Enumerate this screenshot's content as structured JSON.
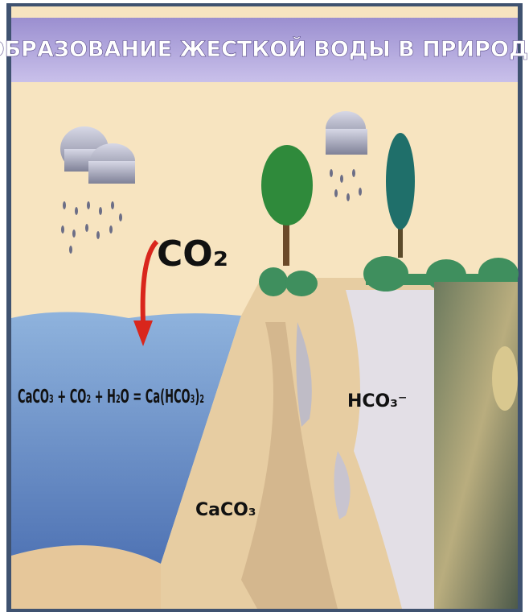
{
  "title": "ОБРАЗОВАНИЕ ЖЕСТКОЙ ВОДЫ В ПРИРОДЕ",
  "labels": {
    "co2": "CO₂",
    "reaction": "CaCO₃ + CO₂ + H₂O = Ca(HCO₃)₂",
    "bicarbonate": "HCO₃⁻",
    "limestone": "CaCO₃"
  }
}
